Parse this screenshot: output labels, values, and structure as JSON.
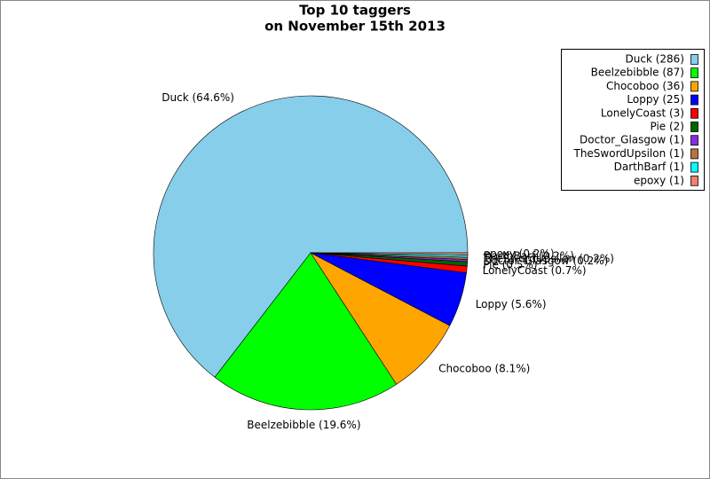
{
  "chart_data": {
    "type": "pie",
    "title": "Top 10 taggers",
    "subtitle": "on November 15th 2013",
    "categories": [
      "Duck (286)",
      "Beelzebibble (87)",
      "Chocoboo (36)",
      "Loppy (25)",
      "LonelyCoast (3)",
      "Pie (2)",
      "Doctor_Glasgow (1)",
      "TheSwordUpsilon (1)",
      "DarthBarf (1)",
      "epoxy (1)"
    ],
    "values": [
      286,
      87,
      36,
      25,
      3,
      2,
      1,
      1,
      1,
      1
    ],
    "value_labels": [
      "Duck (64.6%)",
      "Beelzebibble (19.6%)",
      "Chocoboo (8.1%)",
      "Loppy (5.6%)",
      "LonelyCoast (0.7%)",
      "Pie (0.5%)",
      "Doctor_Glasgow (0.2%)",
      "TheSwordUpsilon (0.2%)",
      "DarthBarf (0.2%)",
      "epoxy (0.2%)"
    ],
    "colors": [
      "#87ceeb",
      "#00ff00",
      "#ffa500",
      "#0000ff",
      "#ff0000",
      "#006400",
      "#8a2be2",
      "#b8763c",
      "#00ffff",
      "#f08070"
    ],
    "legend": "upper right"
  }
}
